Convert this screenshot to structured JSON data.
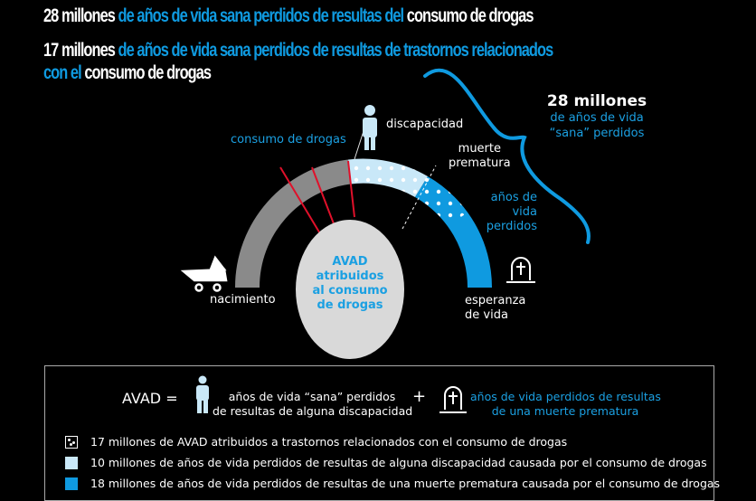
{
  "headline1": {
    "num": "28 millones",
    "mid": " de años de vida sana perdidos de resultas del ",
    "end": "consumo de drogas"
  },
  "headline2": {
    "num": "17 millones",
    "mid": " de años de vida sana perdidos de resultas de trastornos relacionados",
    "line2_blue": "con el ",
    "line2_white": "consumo de drogas"
  },
  "bracket": {
    "value": "28 millones",
    "line1": "de años de vida",
    "line2": "“sana” perdidos"
  },
  "diagram": {
    "consumo": "consumo de drogas",
    "discapacidad": "discapacidad",
    "muerte1": "muerte",
    "muerte2": "prematura",
    "anos1": "años de",
    "anos2": "vida",
    "anos3": "perdidos",
    "nacimiento": "nacimiento",
    "esperanza1": "esperanza",
    "esperanza2": "de vida",
    "center": [
      "AVAD",
      "atribuidos",
      "al consumo",
      "de drogas"
    ]
  },
  "formula": {
    "avad": "AVAD =",
    "term1_line1": "años de vida “sana” perdidos",
    "term1_line2": "de resultas de alguna discapacidad",
    "plus": "+",
    "term2_line1": "años de vida perdidos de resultas",
    "term2_line2": "de una muerte prematura"
  },
  "legend": [
    {
      "text": "17 millones de AVAD atribuidos a trastornos relacionados con el consumo de drogas",
      "swatch": "dotted"
    },
    {
      "text": "10 millones de años de vida perdidos de resultas de alguna discapacidad causada por el consumo de drogas",
      "swatch": "#c9e8f8"
    },
    {
      "text": "18 millones de años de vida perdidos de resultas de una muerte prematura causada por el consumo de drogas",
      "swatch": "#0f9ae0"
    }
  ],
  "colors": {
    "gray": "#8a8a8a",
    "light_blue": "#c9e8f8",
    "blue": "#0f9ae0",
    "red": "#e0102a",
    "circle": "#d9d9d9"
  }
}
